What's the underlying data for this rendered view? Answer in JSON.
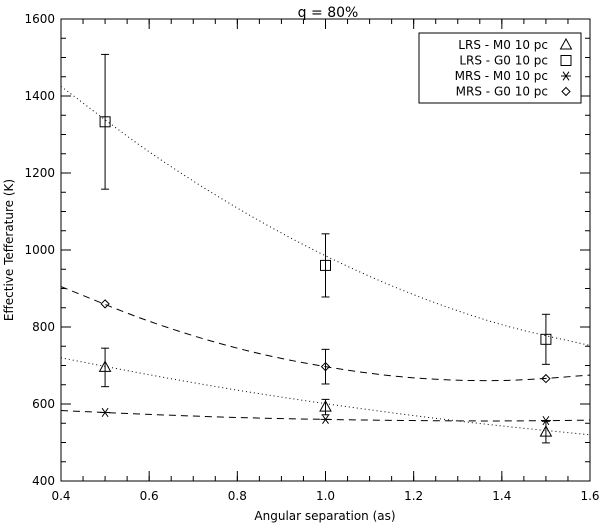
{
  "chart_data": {
    "type": "scatter",
    "title": "q = 80%",
    "xlabel": "Angular separation (as)",
    "ylabel": "Effective Tefferature (K)",
    "xlim": [
      0.4,
      1.6
    ],
    "ylim": [
      400,
      1600
    ],
    "xticks": [
      0.4,
      0.6,
      0.8,
      1.0,
      1.2,
      1.4,
      1.6
    ],
    "xtick_labels": [
      "0.4",
      "0.6",
      "0.8",
      "1.0",
      "1.2",
      "1.4",
      "1.6"
    ],
    "yticks": [
      400,
      600,
      800,
      1000,
      1200,
      1400,
      1600
    ],
    "ytick_labels": [
      "400",
      "600",
      "800",
      "1000",
      "1200",
      "1400",
      "1600"
    ],
    "grid": false,
    "legend_position": "top-right",
    "series": [
      {
        "name": "LRS - M0 10 pc",
        "marker": "triangle",
        "linestyle": "dotted",
        "x": [
          0.5,
          1.0,
          1.5
        ],
        "y": [
          695,
          592,
          527
        ],
        "yerr": [
          50,
          20,
          28
        ],
        "fit": [
          [
            0.4,
            720
          ],
          [
            0.6,
            676
          ],
          [
            0.8,
            636
          ],
          [
            1.0,
            601
          ],
          [
            1.2,
            570
          ],
          [
            1.4,
            543
          ],
          [
            1.6,
            520
          ]
        ]
      },
      {
        "name": "LRS - G0 10 pc",
        "marker": "square",
        "linestyle": "dotted",
        "x": [
          0.5,
          1.0,
          1.5
        ],
        "y": [
          1333,
          960,
          768
        ],
        "yerr": [
          175,
          82,
          65
        ],
        "fit": [
          [
            0.4,
            1425
          ],
          [
            0.6,
            1255
          ],
          [
            0.8,
            1109
          ],
          [
            1.0,
            985
          ],
          [
            1.2,
            884
          ],
          [
            1.4,
            806
          ],
          [
            1.6,
            752
          ]
        ]
      },
      {
        "name": "MRS - M0 10 pc",
        "marker": "asterisk",
        "linestyle": "dashed",
        "x": [
          0.5,
          1.0,
          1.5
        ],
        "y": [
          578,
          560,
          557
        ],
        "yerr": [
          0,
          0,
          0
        ],
        "fit": [
          [
            0.4,
            583
          ],
          [
            0.6,
            573
          ],
          [
            0.8,
            565
          ],
          [
            1.0,
            560
          ],
          [
            1.2,
            557
          ],
          [
            1.4,
            556
          ],
          [
            1.6,
            558
          ]
        ]
      },
      {
        "name": "MRS - G0 10 pc",
        "marker": "diamond",
        "linestyle": "dashed",
        "x": [
          0.5,
          1.0,
          1.5
        ],
        "y": [
          860,
          697,
          666
        ],
        "yerr": [
          0,
          45,
          0
        ],
        "fit": [
          [
            0.4,
            905
          ],
          [
            0.6,
            815
          ],
          [
            0.8,
            745
          ],
          [
            1.0,
            697
          ],
          [
            1.2,
            668
          ],
          [
            1.4,
            661
          ],
          [
            1.6,
            675
          ]
        ]
      }
    ]
  }
}
